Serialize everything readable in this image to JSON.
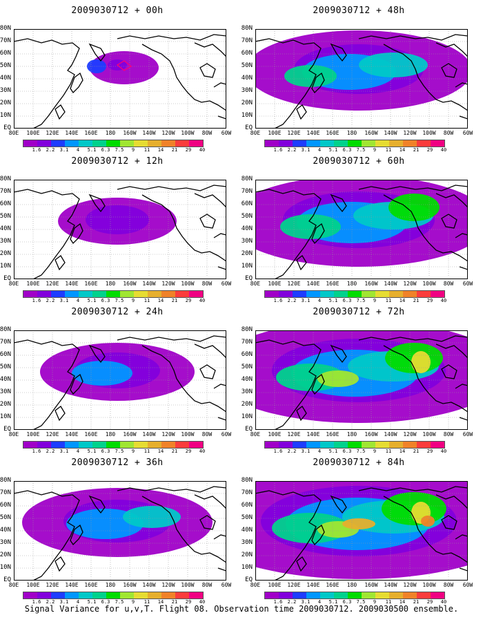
{
  "panels": [
    {
      "title": "2009030712 + 00h",
      "level": 0
    },
    {
      "title": "2009030712 + 12h",
      "level": 1
    },
    {
      "title": "2009030712 + 24h",
      "level": 2
    },
    {
      "title": "2009030712 + 36h",
      "level": 3
    },
    {
      "title": "2009030712 + 48h",
      "level": 4
    },
    {
      "title": "2009030712 + 60h",
      "level": 5
    },
    {
      "title": "2009030712 + 72h",
      "level": 6
    },
    {
      "title": "2009030712 + 84h",
      "level": 7
    }
  ],
  "lat_labels": [
    "80N",
    "70N",
    "60N",
    "50N",
    "40N",
    "30N",
    "20N",
    "10N",
    "EQ"
  ],
  "lon_labels": [
    "80E",
    "100E",
    "120E",
    "140E",
    "160E",
    "180",
    "160W",
    "140W",
    "120W",
    "100W",
    "80W",
    "60W"
  ],
  "colorbar": {
    "ticks": [
      "1.6",
      "2.2",
      "3.1",
      "4",
      "5.1",
      "6.3",
      "7.5",
      "9",
      "11",
      "14",
      "21",
      "29",
      "40"
    ],
    "colors": [
      "#a000c8",
      "#8200dc",
      "#1e3cff",
      "#0096ff",
      "#00c8c8",
      "#00d28c",
      "#00dc00",
      "#a0e632",
      "#e6dc32",
      "#e6af2d",
      "#f08228",
      "#fa3c3c",
      "#f00082"
    ]
  },
  "caption": "Signal Variance for u,v,T. Flight 08. Observation time 2009030712. 2009030500 ensemble."
}
